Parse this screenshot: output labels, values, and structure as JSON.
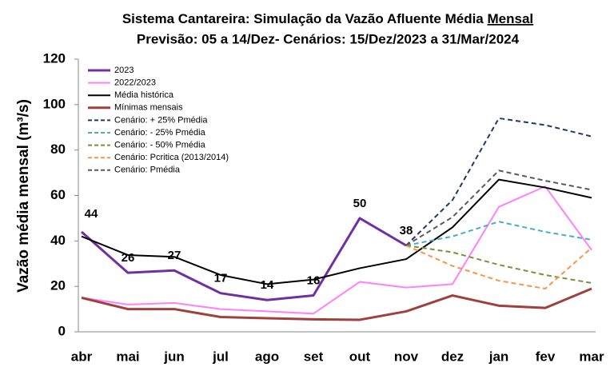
{
  "chart_data": {
    "type": "line",
    "title": "Sistema Cantareira: Simulação da Vazão Afluente Média",
    "title_emphasis": "Mensal",
    "subtitle": "Previsão: 05 a 14/Dez- Cenários: 15/Dez/2023 a 31/Mar/2024",
    "y_label": "Vazão média mensal (m³/s)",
    "categories": [
      "abr",
      "mai",
      "jun",
      "jul",
      "ago",
      "set",
      "out",
      "nov",
      "dez",
      "jan",
      "fev",
      "mar"
    ],
    "ylim": [
      0,
      120
    ],
    "yticks": [
      0,
      20,
      40,
      60,
      80,
      100,
      120
    ],
    "grid": false,
    "legend": "top-left",
    "series": [
      {
        "name": "2023",
        "color": "#7030a0",
        "width": 3,
        "dashed": false,
        "show_labels": true,
        "values": [
          44,
          26,
          27,
          17,
          14,
          16,
          50,
          38,
          null,
          null,
          null,
          null
        ]
      },
      {
        "name": "2022/2023",
        "color": "#ff80ff",
        "width": 2,
        "dashed": false,
        "values": [
          15,
          12,
          12.7,
          10,
          9,
          8,
          22,
          19.5,
          21,
          55,
          64,
          36
        ]
      },
      {
        "name": "Média histórica",
        "color": "#000000",
        "width": 2,
        "dashed": false,
        "values": [
          42,
          33.8,
          33,
          25,
          21,
          23,
          28,
          32,
          46,
          67,
          63.5,
          59
        ]
      },
      {
        "name": "Mínimas mensais",
        "color": "#a0403c",
        "width": 3,
        "dashed": false,
        "values": [
          15,
          10,
          10,
          6.5,
          6,
          5.5,
          5.3,
          9,
          16,
          11.5,
          10.5,
          19
        ]
      },
      {
        "name": "Cenário: + 25% Pmédia",
        "color": "#1f3864",
        "width": 2,
        "dashed": true,
        "values": [
          null,
          null,
          null,
          null,
          null,
          null,
          null,
          38,
          58,
          94,
          91,
          86
        ]
      },
      {
        "name": "Cenário: - 25% Pmédia",
        "color": "#4bacc6",
        "width": 2,
        "dashed": true,
        "values": [
          null,
          null,
          null,
          null,
          null,
          null,
          null,
          38,
          42,
          48.5,
          44,
          40.5
        ]
      },
      {
        "name": "Cenário: - 50% Pmédia",
        "color": "#77933c",
        "width": 2,
        "dashed": true,
        "values": [
          null,
          null,
          null,
          null,
          null,
          null,
          null,
          38,
          35,
          29.5,
          25,
          21.5
        ]
      },
      {
        "name": "Cenário: Pcritica (2013/2014)",
        "color": "#f79646",
        "width": 2,
        "dashed": true,
        "values": [
          null,
          null,
          null,
          null,
          null,
          null,
          null,
          38,
          29,
          22.5,
          19,
          37
        ]
      },
      {
        "name": "Cenário: Pmédia",
        "color": "#595959",
        "width": 2,
        "dashed": true,
        "values": [
          null,
          null,
          null,
          null,
          null,
          null,
          null,
          38,
          50.5,
          71,
          66.5,
          62.5
        ]
      }
    ]
  }
}
